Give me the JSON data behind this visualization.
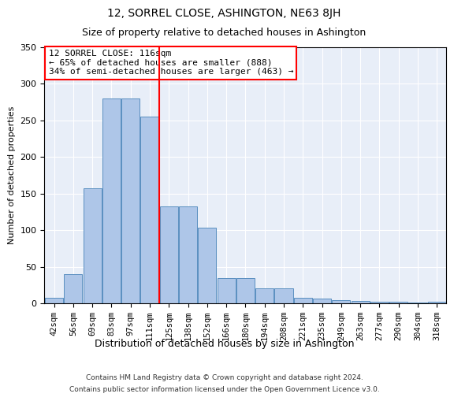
{
  "title": "12, SORREL CLOSE, ASHINGTON, NE63 8JH",
  "subtitle": "Size of property relative to detached houses in Ashington",
  "xlabel": "Distribution of detached houses by size in Ashington",
  "ylabel": "Number of detached properties",
  "bar_labels": [
    "42sqm",
    "56sqm",
    "69sqm",
    "83sqm",
    "97sqm",
    "111sqm",
    "125sqm",
    "138sqm",
    "152sqm",
    "166sqm",
    "180sqm",
    "194sqm",
    "208sqm",
    "221sqm",
    "235sqm",
    "249sqm",
    "263sqm",
    "277sqm",
    "290sqm",
    "304sqm",
    "318sqm"
  ],
  "bar_heights": [
    8,
    40,
    157,
    280,
    280,
    255,
    132,
    132,
    103,
    35,
    35,
    20,
    20,
    8,
    6,
    4,
    3,
    2,
    2,
    1,
    2
  ],
  "bar_color": "#aec6e8",
  "bar_edge_color": "#5a8fc0",
  "property_line_x": 5.5,
  "property_line_color": "red",
  "annotation_text": "12 SORREL CLOSE: 116sqm\n← 65% of detached houses are smaller (888)\n34% of semi-detached houses are larger (463) →",
  "annotation_box_color": "white",
  "annotation_box_edge_color": "red",
  "ylim": [
    0,
    350
  ],
  "yticks": [
    0,
    50,
    100,
    150,
    200,
    250,
    300,
    350
  ],
  "background_color": "#e8eef8",
  "footer_line1": "Contains HM Land Registry data © Crown copyright and database right 2024.",
  "footer_line2": "Contains public sector information licensed under the Open Government Licence v3.0."
}
